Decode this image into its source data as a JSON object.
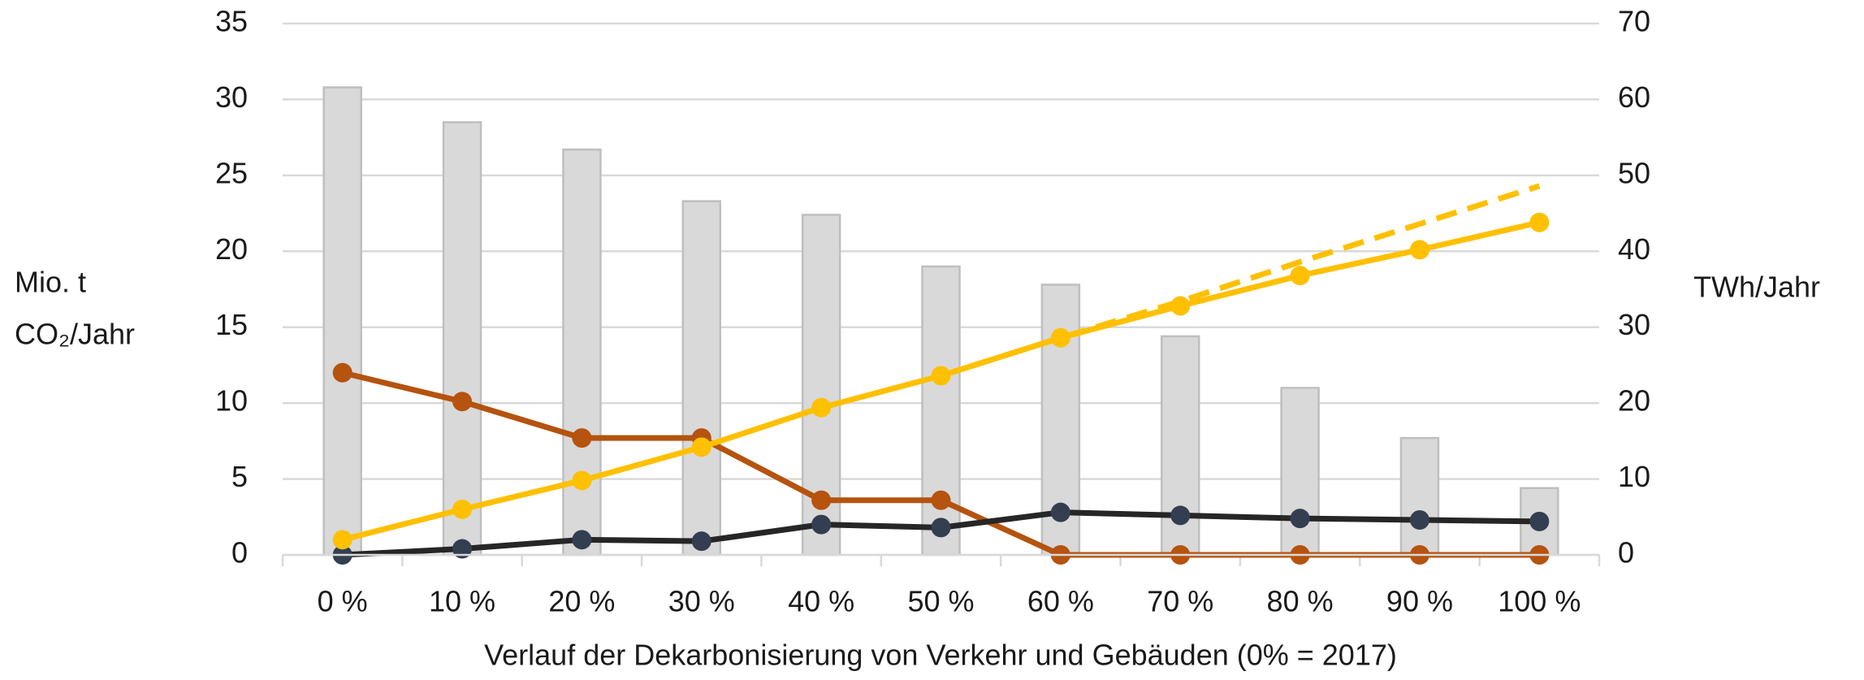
{
  "chart_data": {
    "type": "bar-line",
    "x_label": "Verlauf der Dekarbonisierung von Verkehr und Gebäuden (0% = 2017)",
    "y_label": [
      "Mio. t",
      "CO₂/Jahr"
    ],
    "y2_label": "TWh/Jahr",
    "categories": [
      "0 %",
      "10 %",
      "20 %",
      "30 %",
      "40 %",
      "50 %",
      "60 %",
      "70 %",
      "80 %",
      "90 %",
      "100 %"
    ],
    "ylim": [
      0,
      35
    ],
    "yticks": [
      0,
      5,
      10,
      15,
      20,
      25,
      30,
      35
    ],
    "y2lim": [
      0,
      70
    ],
    "y2ticks": [
      0,
      10,
      20,
      30,
      40,
      50,
      60,
      70
    ],
    "grid": true,
    "series": [
      {
        "type": "bar",
        "color": "#d9d9d9",
        "values": [
          30.8,
          28.5,
          26.7,
          23.3,
          22.4,
          19.0,
          17.8,
          14.4,
          11.0,
          7.7,
          4.4
        ]
      },
      {
        "type": "line",
        "color": "#b5530f",
        "markers": true,
        "values": [
          12.0,
          10.1,
          7.7,
          7.7,
          3.6,
          3.6,
          0,
          0,
          0,
          0,
          0
        ]
      },
      {
        "type": "line",
        "color": "#262626",
        "marker_color": "#333f50",
        "markers": true,
        "values": [
          0,
          0.4,
          1.0,
          0.9,
          2.0,
          1.8,
          2.8,
          2.6,
          2.4,
          2.3,
          2.2
        ]
      },
      {
        "type": "line",
        "color": "#ffc000",
        "dashed": true,
        "markers": false,
        "values": [
          null,
          null,
          null,
          null,
          null,
          11.8,
          14.3,
          16.7,
          19.3,
          21.8,
          24.3
        ]
      },
      {
        "type": "line",
        "color": "#ffc000",
        "markers": true,
        "values": [
          1.0,
          3.0,
          4.9,
          7.1,
          9.7,
          11.8,
          14.3,
          16.4,
          18.4,
          20.1,
          21.9
        ]
      }
    ]
  }
}
